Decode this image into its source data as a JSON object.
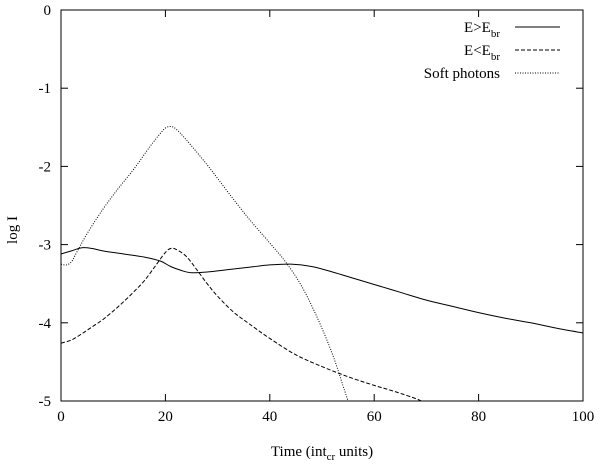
{
  "chart_data": {
    "type": "line",
    "xlabel": {
      "main": "Time (int",
      "sub": "cr",
      "tail": " units)"
    },
    "ylabel": "log I",
    "xlim": [
      0,
      100
    ],
    "ylim": [
      -5,
      0
    ],
    "xticks": [
      0,
      20,
      40,
      60,
      80,
      100
    ],
    "yticks": [
      0,
      -1,
      -2,
      -3,
      -4,
      -5
    ],
    "legend_position": "top-right",
    "series": [
      {
        "name": {
          "main": "E>E",
          "sub": "br"
        },
        "dash": "solid",
        "points": [
          [
            0,
            -3.12
          ],
          [
            2,
            -3.08
          ],
          [
            4,
            -3.04
          ],
          [
            6,
            -3.05
          ],
          [
            8,
            -3.08
          ],
          [
            12,
            -3.12
          ],
          [
            16,
            -3.16
          ],
          [
            19,
            -3.21
          ],
          [
            21,
            -3.28
          ],
          [
            23,
            -3.33
          ],
          [
            25,
            -3.36
          ],
          [
            28,
            -3.35
          ],
          [
            32,
            -3.32
          ],
          [
            36,
            -3.29
          ],
          [
            40,
            -3.26
          ],
          [
            44,
            -3.25
          ],
          [
            48,
            -3.28
          ],
          [
            52,
            -3.35
          ],
          [
            56,
            -3.43
          ],
          [
            60,
            -3.51
          ],
          [
            65,
            -3.61
          ],
          [
            70,
            -3.71
          ],
          [
            75,
            -3.79
          ],
          [
            80,
            -3.87
          ],
          [
            85,
            -3.94
          ],
          [
            90,
            -4.0
          ],
          [
            95,
            -4.07
          ],
          [
            100,
            -4.13
          ]
        ]
      },
      {
        "name": {
          "main": "E<E",
          "sub": "br"
        },
        "dash": "dashed",
        "points": [
          [
            0,
            -4.26
          ],
          [
            2,
            -4.22
          ],
          [
            4,
            -4.14
          ],
          [
            6,
            -4.05
          ],
          [
            8,
            -3.96
          ],
          [
            10,
            -3.85
          ],
          [
            12,
            -3.73
          ],
          [
            14,
            -3.6
          ],
          [
            16,
            -3.46
          ],
          [
            18,
            -3.28
          ],
          [
            20,
            -3.1
          ],
          [
            21,
            -3.05
          ],
          [
            22,
            -3.06
          ],
          [
            24,
            -3.15
          ],
          [
            26,
            -3.32
          ],
          [
            28,
            -3.5
          ],
          [
            30,
            -3.66
          ],
          [
            33,
            -3.86
          ],
          [
            36,
            -4.01
          ],
          [
            40,
            -4.2
          ],
          [
            45,
            -4.41
          ],
          [
            50,
            -4.56
          ],
          [
            55,
            -4.69
          ],
          [
            60,
            -4.8
          ],
          [
            64,
            -4.88
          ],
          [
            68,
            -4.97
          ],
          [
            69,
            -5.0
          ]
        ]
      },
      {
        "name": {
          "main": "Soft photons",
          "sub": ""
        },
        "dash": "dotted",
        "points": [
          [
            0,
            -3.25
          ],
          [
            1,
            -3.26
          ],
          [
            2,
            -3.22
          ],
          [
            3,
            -3.1
          ],
          [
            5,
            -2.86
          ],
          [
            8,
            -2.55
          ],
          [
            11,
            -2.28
          ],
          [
            14,
            -2.03
          ],
          [
            17,
            -1.75
          ],
          [
            19,
            -1.58
          ],
          [
            20,
            -1.51
          ],
          [
            21,
            -1.49
          ],
          [
            22,
            -1.52
          ],
          [
            24,
            -1.66
          ],
          [
            28,
            -1.98
          ],
          [
            32,
            -2.33
          ],
          [
            36,
            -2.67
          ],
          [
            40,
            -2.98
          ],
          [
            43,
            -3.22
          ],
          [
            46,
            -3.52
          ],
          [
            49,
            -3.92
          ],
          [
            52,
            -4.4
          ],
          [
            54,
            -4.8
          ],
          [
            55,
            -5.0
          ]
        ]
      }
    ]
  }
}
